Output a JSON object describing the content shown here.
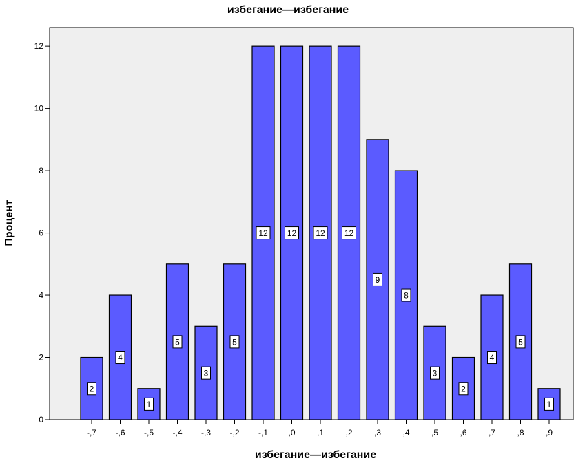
{
  "chart_data": {
    "type": "bar",
    "title": "избегание—избегание",
    "xlabel": "избегание—избегание",
    "ylabel": "Процент",
    "categories": [
      "-,7",
      "-,6",
      "-,5",
      "-,4",
      "-,3",
      "-,2",
      "-,1",
      ",0",
      ",1",
      ",2",
      ",3",
      ",4",
      ",5",
      ",6",
      ",7",
      ",8",
      ",9"
    ],
    "values": [
      2,
      4,
      1,
      5,
      3,
      5,
      12,
      12,
      12,
      12,
      9,
      8,
      3,
      2,
      4,
      5,
      1
    ],
    "data_labels": [
      "2",
      "4",
      "1",
      "5",
      "3",
      "5",
      "12",
      "12",
      "12",
      "12",
      "9",
      "8",
      "3",
      "2",
      "4",
      "5",
      "1"
    ],
    "ylim": [
      0,
      12.6
    ],
    "yticks": [
      0,
      2,
      4,
      6,
      8,
      10,
      12
    ],
    "ytick_labels": [
      "0",
      "2",
      "4",
      "6",
      "8",
      "10",
      "12"
    ],
    "grid": false,
    "bar_color": "#5b5bff",
    "plot_background": "#efefef"
  }
}
